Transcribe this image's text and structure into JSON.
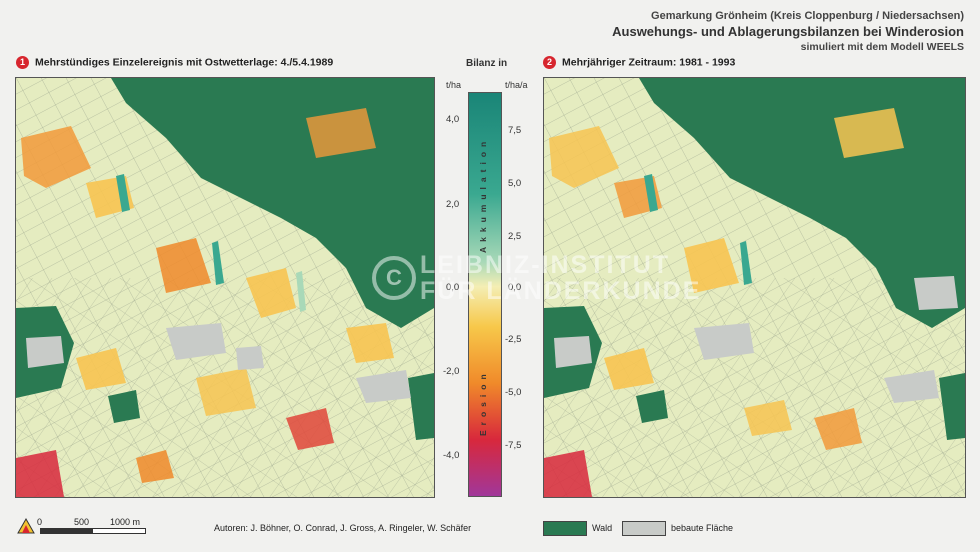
{
  "header": {
    "line1": "Gemarkung Grönheim (Kreis Cloppenburg / Niedersachsen)",
    "line2": "Auswehungs- und Ablagerungsbilanzen bei Winderosion",
    "line3": "simuliert mit dem Modell WEELS"
  },
  "panels": [
    {
      "number": "1",
      "title": "Mehrstündiges Einzelereignis mit Ostwetterlage: 4./5.4.1989"
    },
    {
      "number": "2",
      "title": "Mehrjähriger Zeitraum: 1981 - 1993"
    }
  ],
  "legend": {
    "title": "Bilanz in",
    "unit_left": "t/ha",
    "unit_right": "t/ha/a",
    "accumulation_label": "Akkumulation",
    "erosion_label": "Erosion",
    "left_ticks": [
      "4,0",
      "2,0",
      "0,0",
      "-2,0",
      "-4,0"
    ],
    "right_ticks": [
      "7,5",
      "5,0",
      "2,5",
      "0,0",
      "-2,5",
      "-5,0",
      "-7,5"
    ],
    "colors": {
      "acc_high": "#1a8577",
      "acc_mid": "#3aa890",
      "acc_low": "#a9d9b8",
      "neutral": "#f4eeb4",
      "ero_low": "#f7c84a",
      "ero_mid": "#f08a2a",
      "ero_high": "#d8283c",
      "ero_max": "#a1379a"
    }
  },
  "map_legend": [
    {
      "label": "Wald",
      "color": "#2a7a52"
    },
    {
      "label": "bebaute Fläche",
      "color": "#c8cbc8"
    }
  ],
  "scale": {
    "labels": [
      "0",
      "500",
      "1000 m"
    ]
  },
  "authors": "Autoren: J. Böhner, O. Conrad, J. Gross, A. Ringeler, W. Schäfer",
  "watermark": {
    "line1": "LEIBNIZ-INSTITUT",
    "line2": "FÜR LÄNDERKUNDE"
  }
}
